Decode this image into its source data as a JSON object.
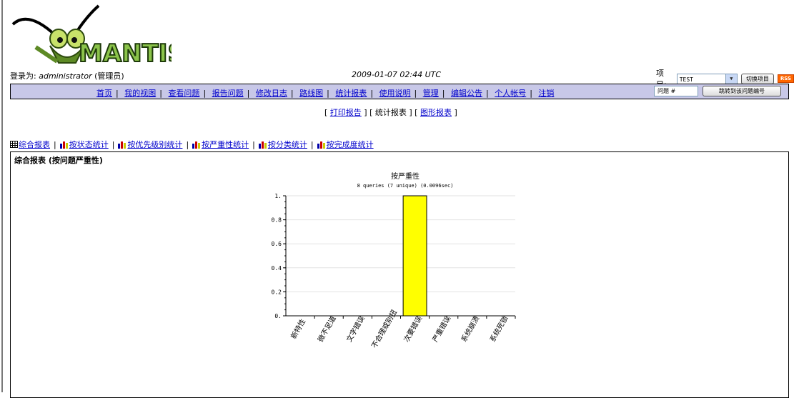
{
  "header": {
    "logo_text": "MANTIS",
    "login_label": "登录为:",
    "username": "administrator",
    "role": "(管理员)",
    "datetime": "2009-01-07 02:44 UTC",
    "project_label": "项目:",
    "project_value": "TEST",
    "switch_button": "切换项目",
    "rss_label": "RSS"
  },
  "menu": {
    "items": [
      "首页",
      "我的视图",
      "查看问题",
      "报告问题",
      "修改日志",
      "路线图",
      "统计报表",
      "使用说明",
      "管理",
      "编辑公告",
      "个人帐号",
      "注销"
    ],
    "jump_placeholder": "问题 #",
    "jump_button": "跳转到该问题编号"
  },
  "subnav": {
    "open": "[",
    "print_report": "打印报告",
    "mid1": "] [",
    "summary": "统计报表",
    "mid2": "] [",
    "graph_report": "图形报表",
    "close": "]"
  },
  "tabs": {
    "items": [
      "综合报表",
      "按状态统计",
      "按优先级别统计",
      "按严重性统计",
      "按分类统计",
      "按完成度统计"
    ]
  },
  "panel": {
    "title": "综合报表 (按问题严重性)"
  },
  "chart_data": {
    "type": "bar",
    "title": "按严重性",
    "subtitle": "8 queries (7 unique) (0.0096sec)",
    "categories": [
      "新特性",
      "微不足道",
      "文字错误",
      "不合理或别扭",
      "次要错误",
      "严重错误",
      "系统崩溃",
      "系统死锁"
    ],
    "values": [
      0,
      0,
      0,
      0,
      1,
      0,
      0,
      0
    ],
    "ylim": [
      0,
      1
    ],
    "yticks": [
      "0.",
      "0.2",
      "0.4",
      "0.6",
      "0.8",
      "1."
    ],
    "bar_color": "#ffff00",
    "grid": true
  }
}
